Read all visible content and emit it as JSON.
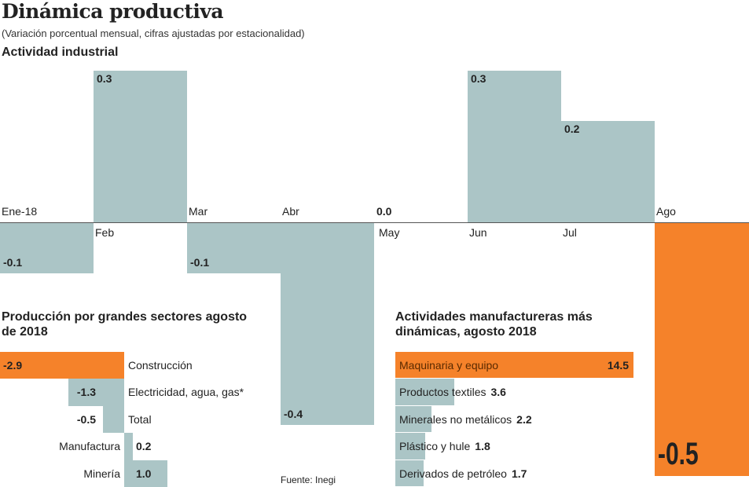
{
  "title": "Dinámica productiva",
  "subtitle": "(Variación porcentual mensual, cifras ajustadas por estacionalidad)",
  "source": "Fuente: Inegi",
  "colors": {
    "base": "#abc5c6",
    "highlight": "#f5822a"
  },
  "chart_data": [
    {
      "type": "bar",
      "title": "Actividad industrial",
      "categories": [
        "Ene-18",
        "Feb",
        "Mar",
        "Abr",
        "May",
        "Jun",
        "Jul",
        "Ago"
      ],
      "values": [
        -0.1,
        0.3,
        -0.1,
        -0.4,
        0.0,
        0.3,
        0.2,
        -0.5
      ],
      "value_labels": [
        "-0.1",
        "0.3",
        "-0.1",
        "-0.4",
        "0.0",
        "0.3",
        "0.2",
        "-0.5"
      ],
      "highlight": "Ago",
      "grid": false
    },
    {
      "type": "bar",
      "orientation": "horizontal",
      "title": "Producción por grandes sectores agosto de 2018",
      "categories": [
        "Construcción",
        "Electricidad, agua, gas*",
        "Total",
        "Manufactura",
        "Minería"
      ],
      "values": [
        -2.9,
        -1.3,
        -0.5,
        0.2,
        1.0
      ],
      "value_labels": [
        "-2.9",
        "-1.3",
        "-0.5",
        "0.2",
        "1.0"
      ],
      "highlight": "Construcción"
    },
    {
      "type": "bar",
      "orientation": "horizontal",
      "title": "Actividades manufactureras más dinámicas, agosto 2018",
      "categories": [
        "Maquinaria y equipo",
        "Productos textiles",
        "Minerales no metálicos",
        "Plástico y hule",
        "Derivados de petróleo"
      ],
      "values": [
        14.5,
        3.6,
        2.2,
        1.8,
        1.7
      ],
      "value_labels": [
        "14.5",
        "3.6",
        "2.2",
        "1.8",
        "1.7"
      ],
      "highlight": "Maquinaria y equipo"
    }
  ]
}
